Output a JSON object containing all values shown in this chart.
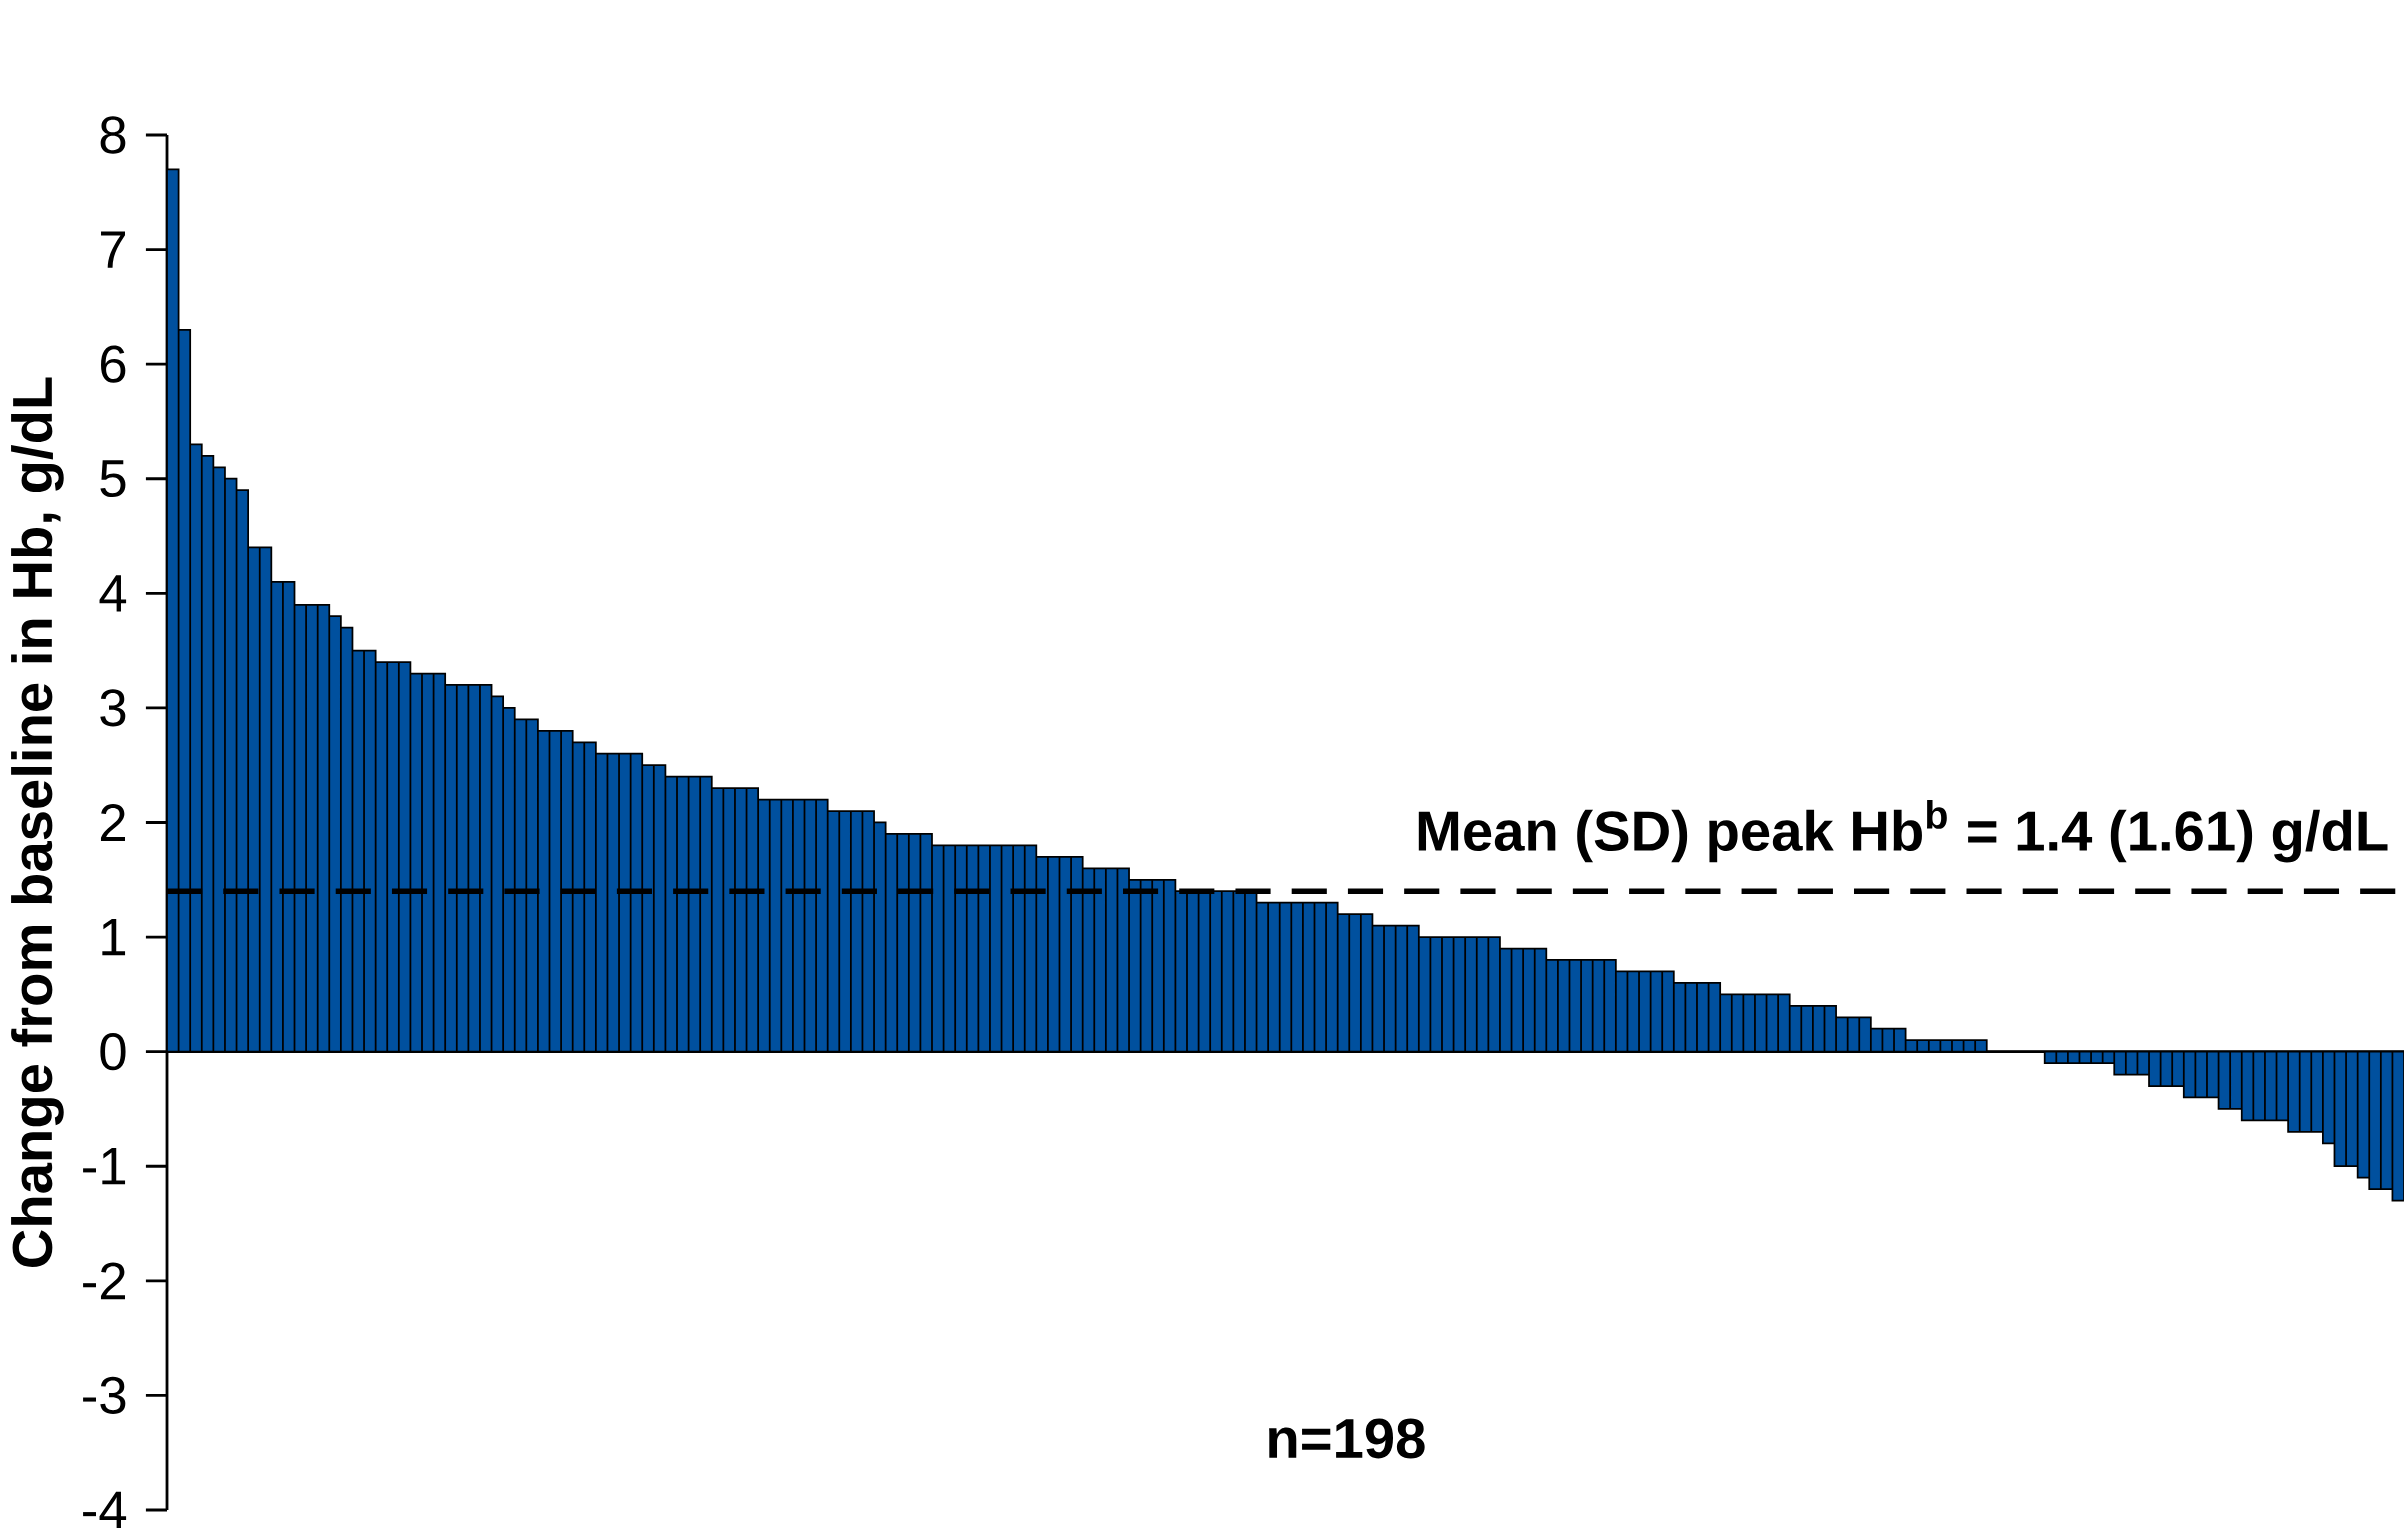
{
  "chart_data": {
    "type": "bar",
    "ylabel": "Change from baseline in Hb, g/dL",
    "categories": [
      null,
      null,
      null,
      null,
      null,
      null,
      null,
      null,
      null,
      null,
      null,
      null,
      null,
      null,
      null,
      null,
      null,
      null,
      null,
      null,
      null,
      null,
      null,
      null,
      null,
      null,
      null,
      null,
      null,
      null,
      null,
      null,
      null,
      null,
      null,
      null,
      null,
      null,
      null,
      null,
      null,
      null,
      null,
      null,
      null,
      null,
      null,
      null,
      null,
      null,
      null,
      null,
      null,
      null,
      null,
      null,
      null,
      null,
      null,
      null,
      null,
      null,
      null,
      null,
      null,
      null,
      null,
      null,
      null,
      null,
      null,
      null,
      null,
      null,
      null,
      null,
      null,
      null,
      null,
      null,
      null,
      null,
      null,
      null,
      null,
      null,
      null,
      null,
      null,
      null,
      null,
      null,
      null,
      null,
      null,
      null,
      null,
      null,
      null,
      null,
      null,
      null,
      null,
      null,
      null,
      null,
      null,
      null,
      null,
      null,
      null,
      null,
      null,
      null,
      null,
      null,
      null,
      null,
      null,
      null,
      null,
      null,
      null,
      null,
      null,
      null,
      null,
      null,
      null,
      null,
      null,
      null,
      null,
      null,
      null,
      null,
      null,
      null,
      null,
      null,
      null,
      null,
      null,
      null,
      null,
      null,
      null,
      null,
      null,
      null,
      null,
      null,
      null,
      null,
      null,
      null,
      null,
      null,
      null,
      null,
      null,
      null,
      null,
      null,
      null,
      null,
      null,
      null,
      null,
      null,
      null,
      null,
      null,
      null,
      null,
      null,
      null,
      null,
      null,
      null,
      null,
      null,
      null,
      null,
      null,
      null,
      null,
      null,
      null,
      null,
      null,
      null,
      null
    ],
    "values": [
      7.7,
      6.3,
      5.3,
      5.2,
      5.1,
      5.0,
      4.9,
      4.4,
      4.4,
      4.1,
      4.1,
      3.9,
      3.9,
      3.9,
      3.8,
      3.7,
      3.5,
      3.5,
      3.4,
      3.4,
      3.4,
      3.3,
      3.3,
      3.3,
      3.2,
      3.2,
      3.2,
      3.2,
      3.1,
      3.0,
      2.9,
      2.9,
      2.8,
      2.8,
      2.8,
      2.7,
      2.7,
      2.6,
      2.6,
      2.6,
      2.6,
      2.5,
      2.5,
      2.4,
      2.4,
      2.4,
      2.4,
      2.3,
      2.3,
      2.3,
      2.3,
      2.2,
      2.2,
      2.2,
      2.2,
      2.2,
      2.2,
      2.1,
      2.1,
      2.1,
      2.1,
      2.0,
      1.9,
      1.9,
      1.9,
      1.9,
      1.8,
      1.8,
      1.8,
      1.8,
      1.8,
      1.8,
      1.8,
      1.8,
      1.8,
      1.7,
      1.7,
      1.7,
      1.7,
      1.6,
      1.6,
      1.6,
      1.6,
      1.5,
      1.5,
      1.5,
      1.5,
      1.4,
      1.4,
      1.4,
      1.4,
      1.4,
      1.4,
      1.4,
      1.3,
      1.3,
      1.3,
      1.3,
      1.3,
      1.3,
      1.3,
      1.2,
      1.2,
      1.2,
      1.1,
      1.1,
      1.1,
      1.1,
      1.0,
      1.0,
      1.0,
      1.0,
      1.0,
      1.0,
      1.0,
      0.9,
      0.9,
      0.9,
      0.9,
      0.8,
      0.8,
      0.8,
      0.8,
      0.8,
      0.8,
      0.7,
      0.7,
      0.7,
      0.7,
      0.7,
      0.6,
      0.6,
      0.6,
      0.6,
      0.5,
      0.5,
      0.5,
      0.5,
      0.5,
      0.5,
      0.4,
      0.4,
      0.4,
      0.4,
      0.3,
      0.3,
      0.3,
      0.2,
      0.2,
      0.2,
      0.1,
      0.1,
      0.1,
      0.1,
      0.1,
      0.1,
      0.1,
      0,
      0,
      0,
      0,
      0,
      -0.1,
      -0.1,
      -0.1,
      -0.1,
      -0.1,
      -0.1,
      -0.2,
      -0.2,
      -0.2,
      -0.3,
      -0.3,
      -0.3,
      -0.4,
      -0.4,
      -0.4,
      -0.5,
      -0.5,
      -0.6,
      -0.6,
      -0.6,
      -0.6,
      -0.7,
      -0.7,
      -0.7,
      -0.8,
      -1.0,
      -1.0,
      -1.1,
      -1.2,
      -1.2,
      -1.3
    ],
    "color": "#00509e",
    "ylim": [
      -4,
      8
    ],
    "yticks": [
      -4,
      -3,
      -2,
      -1,
      0,
      1,
      2,
      3,
      4,
      5,
      6,
      7,
      8
    ],
    "ref_lines": [
      {
        "axis": "y",
        "value": 1.4,
        "label": "**Mean (SD) peak Hb$^{b}$ = 1.4 (1.61) g/dL**",
        "line_style": "dashed",
        "color": "#000000"
      }
    ],
    "annotations": [
      "**n=198**"
    ]
  }
}
